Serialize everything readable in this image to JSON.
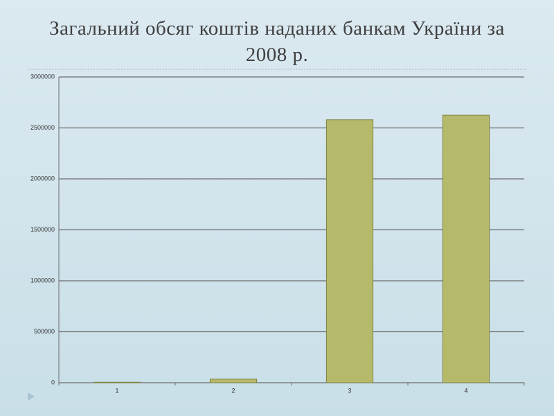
{
  "chart_data": {
    "type": "bar",
    "title": "Загальний обсяг коштів наданих банкам України за 2008 р.",
    "categories": [
      "1",
      "2",
      "3",
      "4"
    ],
    "values": [
      5000,
      35000,
      2580000,
      2625000
    ],
    "color": "#b5b96a",
    "ylim": [
      0,
      3000000
    ],
    "yticks": [
      0,
      500000,
      1000000,
      1500000,
      2000000,
      2500000,
      3000000
    ],
    "grid": true
  }
}
